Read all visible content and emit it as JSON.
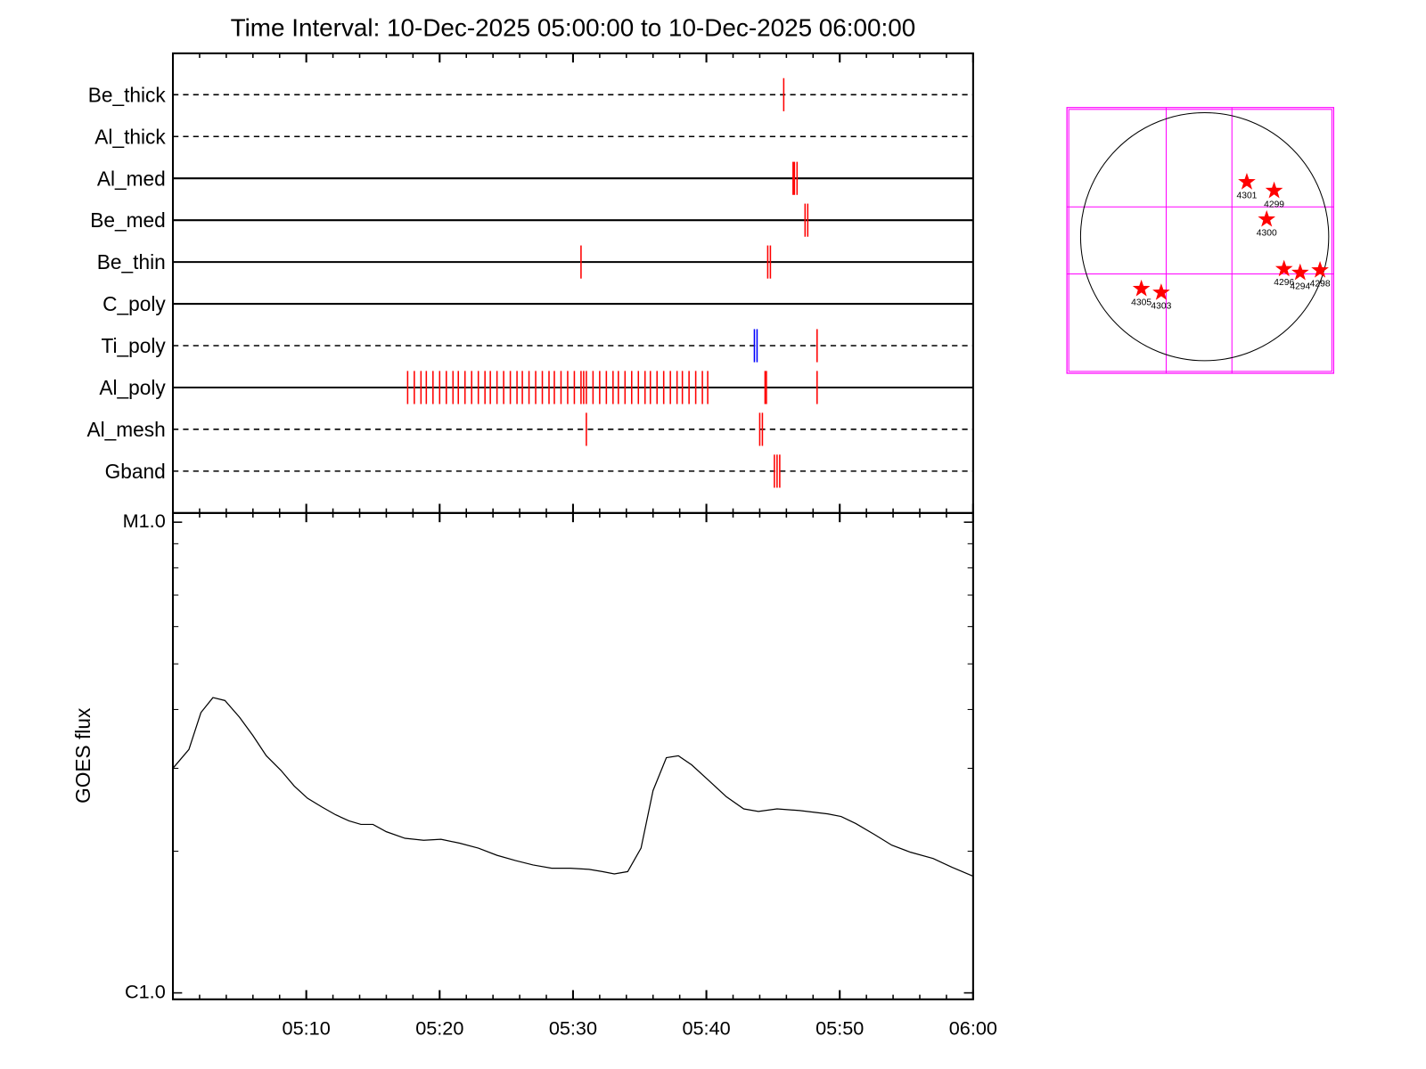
{
  "chart_data": [
    {
      "type": "timeline",
      "title": "Time Interval: 10-Dec-2025 05:00:00 to 10-Dec-2025 06:00:00",
      "xlim": [
        0,
        60
      ],
      "rows": [
        {
          "name": "Be_thick",
          "line": "dashed",
          "color": "#ff0000",
          "values": [
            45.8
          ]
        },
        {
          "name": "Al_thick",
          "line": "dashed",
          "color": "#ff0000",
          "values": []
        },
        {
          "name": "Al_med",
          "line": "solid",
          "color": "#ff0000",
          "values": [
            46.5,
            46.6,
            46.8
          ]
        },
        {
          "name": "Be_med",
          "line": "solid",
          "color": "#ff0000",
          "values": [
            47.4,
            47.6
          ]
        },
        {
          "name": "Be_thin",
          "line": "solid",
          "color": "#ff0000",
          "values": [
            30.6,
            44.6,
            44.8
          ]
        },
        {
          "name": "C_poly",
          "line": "solid",
          "color": "#ff0000",
          "values": []
        },
        {
          "name": "Ti_poly",
          "line": "dashed",
          "color": "#ff0000",
          "colors": [
            "#0000ff",
            "#0000ff",
            "#ff0000"
          ],
          "values": [
            43.6,
            43.8,
            48.3
          ]
        },
        {
          "name": "Al_poly",
          "line": "solid",
          "color": "#ff0000",
          "values": [
            17.6,
            18.1,
            18.6,
            19.0,
            19.5,
            20.0,
            20.5,
            21.0,
            21.4,
            21.9,
            22.4,
            22.9,
            23.4,
            23.8,
            24.3,
            24.8,
            25.3,
            25.8,
            26.2,
            26.7,
            27.2,
            27.7,
            28.2,
            28.6,
            29.1,
            29.6,
            30.1,
            30.6,
            30.8,
            31.0,
            31.5,
            32.0,
            32.5,
            33.0,
            33.4,
            33.9,
            34.4,
            34.9,
            35.4,
            35.8,
            36.3,
            36.8,
            37.3,
            37.8,
            38.2,
            38.7,
            39.2,
            39.7,
            40.1,
            44.4,
            44.5,
            48.3
          ]
        },
        {
          "name": "Al_mesh",
          "line": "dashed",
          "color": "#ff0000",
          "values": [
            31.0,
            44.0,
            44.2
          ]
        },
        {
          "name": "Gband",
          "line": "dashed",
          "color": "#ff0000",
          "values": [
            45.1,
            45.3,
            45.5
          ]
        }
      ]
    },
    {
      "type": "line",
      "ylabel": "GOES flux",
      "log_y": true,
      "xlim": [
        0,
        60
      ],
      "xticks": [
        {
          "value": 10,
          "label": "05:10"
        },
        {
          "value": 20,
          "label": "05:20"
        },
        {
          "value": 30,
          "label": "05:30"
        },
        {
          "value": 40,
          "label": "05:40"
        },
        {
          "value": 50,
          "label": "05:50"
        },
        {
          "value": 60,
          "label": "06:00"
        }
      ],
      "xminorticks": [
        2,
        4,
        6,
        8,
        12,
        14,
        16,
        18,
        22,
        24,
        26,
        28,
        32,
        34,
        36,
        38,
        42,
        44,
        46,
        48,
        52,
        54,
        56,
        58
      ],
      "ylim": [
        1e-06,
        1e-05
      ],
      "yticks": [
        {
          "value": 1e-06,
          "label": "C1.0"
        },
        {
          "value": 1e-05,
          "label": "M1.0"
        }
      ],
      "yminorticks": [
        2e-06,
        3e-06,
        4e-06,
        5e-06,
        6e-06,
        7e-06,
        8e-06,
        9e-06
      ],
      "x": [
        0,
        1.2,
        2.1,
        3.0,
        3.9,
        5.0,
        6.0,
        7.0,
        8.1,
        9.1,
        10.1,
        11.2,
        12.2,
        13.2,
        14.1,
        15.0,
        16.0,
        17.4,
        18.8,
        20.1,
        21.5,
        22.9,
        24.3,
        25.7,
        27.0,
        28.4,
        29.8,
        31.2,
        32.2,
        33.1,
        34.1,
        35.1,
        36.0,
        37.0,
        37.9,
        38.9,
        40.1,
        41.5,
        42.8,
        43.9,
        45.3,
        47.0,
        49.1,
        50.1,
        51.2,
        52.6,
        53.9,
        55.3,
        57.0,
        58.4,
        60
      ],
      "series": [
        {
          "color": "#000000",
          "values": [
            3e-06,
            3.29e-06,
            3.94e-06,
            4.24e-06,
            4.18e-06,
            3.85e-06,
            3.52e-06,
            3.19e-06,
            2.97e-06,
            2.75e-06,
            2.59e-06,
            2.48e-06,
            2.39e-06,
            2.32e-06,
            2.28e-06,
            2.28e-06,
            2.2e-06,
            2.13e-06,
            2.11e-06,
            2.12e-06,
            2.08e-06,
            2.03e-06,
            1.96e-06,
            1.91e-06,
            1.87e-06,
            1.84e-06,
            1.84e-06,
            1.83e-06,
            1.81e-06,
            1.79e-06,
            1.81e-06,
            2.03e-06,
            2.69e-06,
            3.16e-06,
            3.19e-06,
            3.05e-06,
            2.84e-06,
            2.61e-06,
            2.46e-06,
            2.43e-06,
            2.46e-06,
            2.44e-06,
            2.4e-06,
            2.37e-06,
            2.29e-06,
            2.17e-06,
            2.06e-06,
            1.99e-06,
            1.93e-06,
            1.85e-06,
            1.77e-06
          ]
        }
      ]
    },
    {
      "type": "map",
      "xlim": [
        -1.11,
        1.04
      ],
      "ylim": [
        -1.1,
        1.04
      ],
      "grid_x": [
        -0.31,
        0.22
      ],
      "grid_y": [
        0.24,
        -0.3
      ],
      "grid_color": "#ff00ff",
      "marker_color": "#ff0000",
      "points": [
        {
          "label": "4301",
          "x": 0.34,
          "y": 0.44
        },
        {
          "label": "4299",
          "x": 0.56,
          "y": 0.37
        },
        {
          "label": "4300",
          "x": 0.5,
          "y": 0.14
        },
        {
          "label": "4296",
          "x": 0.64,
          "y": -0.26
        },
        {
          "label": "4294",
          "x": 0.77,
          "y": -0.29
        },
        {
          "label": "4298",
          "x": 0.93,
          "y": -0.27
        },
        {
          "label": "4305",
          "x": -0.51,
          "y": -0.42
        },
        {
          "label": "4303",
          "x": -0.35,
          "y": -0.45
        }
      ]
    }
  ]
}
